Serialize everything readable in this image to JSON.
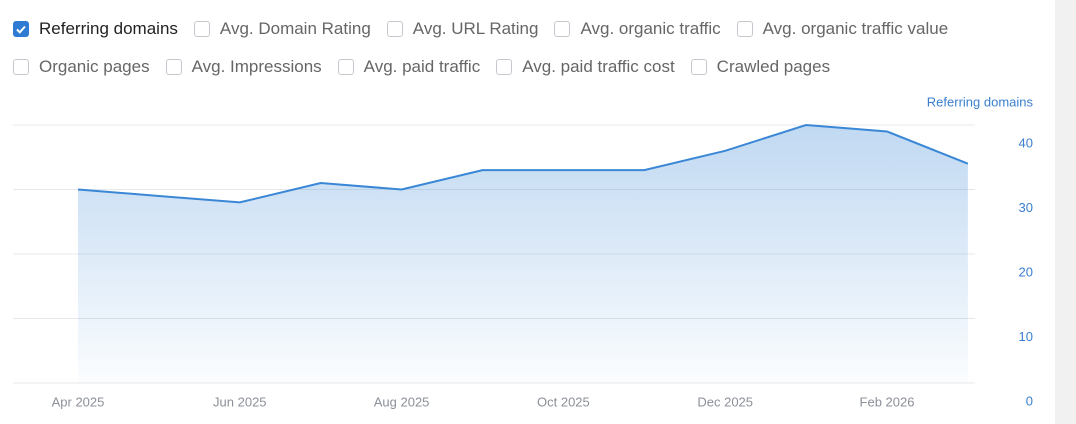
{
  "filters": [
    [
      {
        "label": "Referring domains",
        "checked": true
      },
      {
        "label": "Avg. Domain Rating",
        "checked": false
      },
      {
        "label": "Avg. URL Rating",
        "checked": false
      },
      {
        "label": "Avg. organic traffic",
        "checked": false
      },
      {
        "label": "Avg. organic traffic value",
        "checked": false
      }
    ],
    [
      {
        "label": "Organic pages",
        "checked": false
      },
      {
        "label": "Avg. Impressions",
        "checked": false
      },
      {
        "label": "Avg. paid traffic",
        "checked": false
      },
      {
        "label": "Avg. paid traffic cost",
        "checked": false
      },
      {
        "label": "Crawled pages",
        "checked": false
      }
    ]
  ],
  "chart_data": {
    "type": "area",
    "y_label": "Referring domains",
    "categories": [
      "Apr 2025",
      null,
      "Jun 2025",
      null,
      "Aug 2025",
      null,
      "Oct 2025",
      null,
      "Dec 2025",
      null,
      "Feb 2026",
      null
    ],
    "series": [
      {
        "name": "Referring domains",
        "color": "#3a87d6",
        "values": [
          30,
          29,
          28,
          31,
          30,
          33,
          33,
          33,
          36,
          40,
          39,
          34
        ]
      }
    ],
    "ylim": [
      0,
      40
    ],
    "yticks": [
      0,
      10,
      20,
      30,
      40
    ],
    "grid": true
  }
}
